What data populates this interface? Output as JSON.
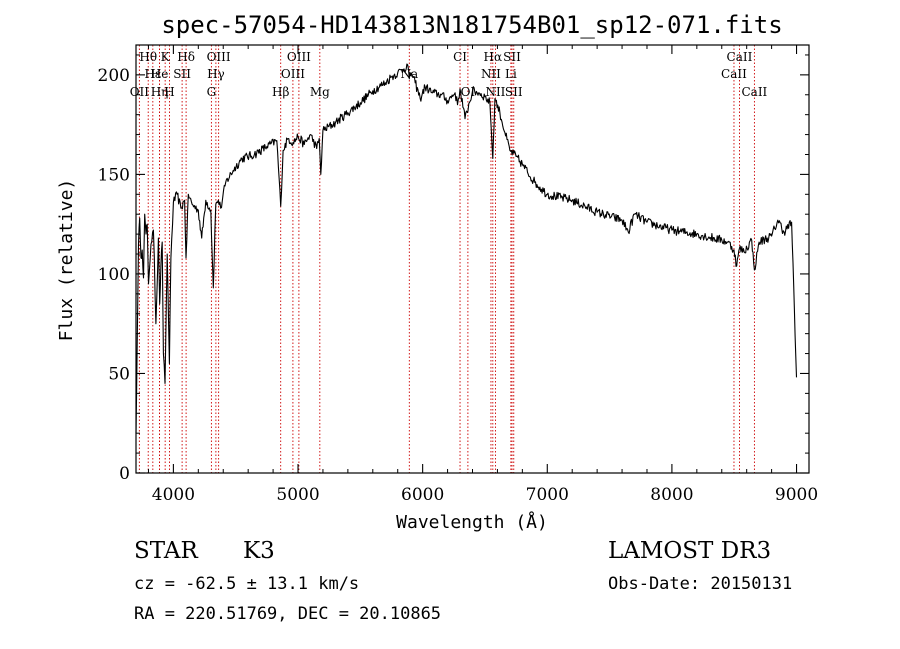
{
  "chart_data": {
    "type": "line",
    "title": "spec-57054-HD143813N181754B01_sp12-071.fits",
    "xlabel": "Wavelength (Å)",
    "ylabel": "Flux (relative)",
    "xlim": [
      3700,
      9100
    ],
    "ylim": [
      0,
      215
    ],
    "xticks": [
      4000,
      5000,
      6000,
      7000,
      8000,
      9000
    ],
    "xtick_labels": [
      "4000",
      "5000",
      "6000",
      "7000",
      "8000",
      "9000"
    ],
    "yticks": [
      0,
      50,
      100,
      150,
      200
    ],
    "ytick_labels": [
      "0",
      "50",
      "100",
      "150",
      "200"
    ],
    "grid": false,
    "series": [
      {
        "name": "flux",
        "x": [
          3700,
          3710,
          3720,
          3730,
          3740,
          3750,
          3760,
          3770,
          3780,
          3790,
          3800,
          3820,
          3840,
          3860,
          3880,
          3890,
          3900,
          3910,
          3920,
          3933,
          3950,
          3968,
          3980,
          4000,
          4030,
          4060,
          4090,
          4101,
          4120,
          4150,
          4200,
          4227,
          4260,
          4300,
          4320,
          4340,
          4360,
          4380,
          4420,
          4480,
          4550,
          4650,
          4750,
          4830,
          4861,
          4880,
          4920,
          4960,
          5000,
          5050,
          5100,
          5150,
          5170,
          5183,
          5200,
          5300,
          5400,
          5500,
          5600,
          5700,
          5750,
          5800,
          5850,
          5880,
          5893,
          5910,
          5940,
          5980,
          6020,
          6080,
          6150,
          6200,
          6260,
          6280,
          6300,
          6340,
          6400,
          6450,
          6500,
          6540,
          6563,
          6580,
          6620,
          6660,
          6700,
          6750,
          6800,
          6900,
          7000,
          7200,
          7400,
          7600,
          7650,
          7700,
          7800,
          8000,
          8200,
          8400,
          8450,
          8498,
          8520,
          8542,
          8580,
          8640,
          8662,
          8700,
          8800,
          8850,
          8900,
          8960,
          9000
        ],
        "y": [
          20,
          65,
          115,
          128,
          108,
          112,
          98,
          130,
          120,
          125,
          95,
          115,
          122,
          75,
          118,
          85,
          104,
          116,
          60,
          45,
          110,
          55,
          108,
          136,
          140,
          133,
          137,
          108,
          140,
          135,
          132,
          118,
          137,
          132,
          93,
          135,
          137,
          133,
          146,
          152,
          158,
          160,
          164,
          167,
          134,
          162,
          168,
          166,
          169,
          165,
          170,
          163,
          168,
          150,
          172,
          176,
          181,
          186,
          192,
          196,
          199,
          201,
          203,
          205,
          198,
          201,
          196,
          188,
          194,
          191,
          190,
          187,
          191,
          185,
          193,
          178,
          192,
          191,
          189,
          186,
          158,
          188,
          181,
          171,
          162,
          159,
          155,
          146,
          140,
          137,
          131,
          127,
          121,
          130,
          126,
          122,
          120,
          117,
          116,
          112,
          104,
          113,
          111,
          117,
          102,
          116,
          119,
          127,
          121,
          126,
          48
        ]
      }
    ],
    "line_annotations": [
      {
        "label": "Hθ",
        "x": 3798,
        "row": 1
      },
      {
        "label": "OII",
        "x": 3727,
        "row": 3
      },
      {
        "label": "Hε",
        "x": 3835,
        "row": 2
      },
      {
        "label": "Hη",
        "x": 3889,
        "row": 3
      },
      {
        "label": "K",
        "x": 3934,
        "row": 1
      },
      {
        "label": "He",
        "x": 3889,
        "row": 2
      },
      {
        "label": "H",
        "x": 3969,
        "row": 3
      },
      {
        "label": "Hδ",
        "x": 4102,
        "row": 1
      },
      {
        "label": "SII",
        "x": 4070,
        "row": 2
      },
      {
        "label": "OIII",
        "x": 4363,
        "row": 1
      },
      {
        "label": "Hγ",
        "x": 4341,
        "row": 2
      },
      {
        "label": "G",
        "x": 4305,
        "row": 3
      },
      {
        "label": "Hβ",
        "x": 4861,
        "row": 3
      },
      {
        "label": "OIII",
        "x": 5007,
        "row": 1
      },
      {
        "label": "OIII",
        "x": 4959,
        "row": 2
      },
      {
        "label": "Mg",
        "x": 5175,
        "row": 3
      },
      {
        "label": "Na",
        "x": 5893,
        "row": 2
      },
      {
        "label": "CI",
        "x": 6300,
        "row": 1
      },
      {
        "label": "OI",
        "x": 6363,
        "row": 3
      },
      {
        "label": "Hα",
        "x": 6563,
        "row": 1
      },
      {
        "label": "NII",
        "x": 6548,
        "row": 2
      },
      {
        "label": "NII",
        "x": 6584,
        "row": 3
      },
      {
        "label": "SII",
        "x": 6717,
        "row": 1
      },
      {
        "label": "Li",
        "x": 6708,
        "row": 2
      },
      {
        "label": "SII",
        "x": 6731,
        "row": 3
      },
      {
        "label": "CaII",
        "x": 8542,
        "row": 1
      },
      {
        "label": "CaII",
        "x": 8498,
        "row": 2
      },
      {
        "label": "CaII",
        "x": 8662,
        "row": 3
      }
    ]
  },
  "info": {
    "object_type": "STAR",
    "subclass": "K3",
    "survey": "LAMOST DR3",
    "redshift_text": "cz = -62.5 ± 13.1 km/s",
    "obs_date_text": "Obs-Date: 20150131",
    "coords_text": "RA = 220.51769, DEC =  20.10865"
  }
}
